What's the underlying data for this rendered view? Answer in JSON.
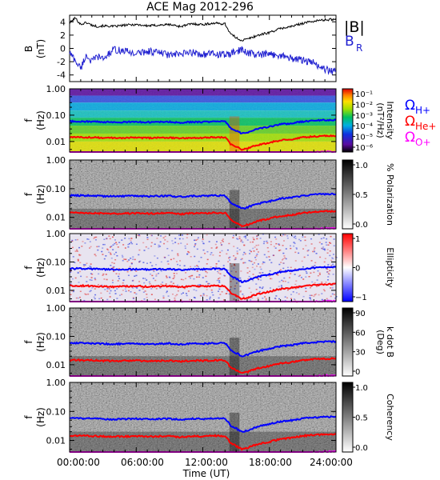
{
  "title": "ACE Mag 2012-296",
  "x_axis": {
    "label": "Time (UT)",
    "ticks": [
      "00:00:00",
      "06:00:00",
      "12:00:00",
      "18:00:00",
      "24:00:00"
    ]
  },
  "colors": {
    "B_total": "#000000",
    "B_R": "#1f1fd0",
    "H_plus": "#0000ff",
    "He_plus": "#ff0000",
    "O_plus": "#ff00ff"
  },
  "panels": [
    {
      "id": "field",
      "ylabel": [
        "B",
        "(nT)"
      ],
      "yticks": [
        "4",
        "2",
        "0",
        "-2",
        "-4"
      ],
      "legend": {
        "total": "|B|",
        "radial_main": "B",
        "radial_sub": "R"
      }
    },
    {
      "id": "intensity",
      "ylabel": [
        "f",
        "(Hz)"
      ],
      "yticks": [
        "1.00",
        "0.10",
        "0.01"
      ],
      "colorbar_label": [
        "Intensity",
        "(nT²/Hz)"
      ],
      "colorbar_ticks": [
        "10⁻¹",
        "10⁻²",
        "10⁻³",
        "10⁻⁴",
        "10⁻⁵",
        "10⁻⁶"
      ],
      "gyro_legend": [
        {
          "main": "Ω",
          "sub": "H+",
          "color": "#0000ff"
        },
        {
          "main": "Ω",
          "sub": "He+",
          "color": "#ff0000"
        },
        {
          "main": "Ω",
          "sub": "O+",
          "color": "#ff00ff"
        }
      ]
    },
    {
      "id": "polarization",
      "ylabel": [
        "f",
        "(Hz)"
      ],
      "yticks": [
        "1.00",
        "0.10",
        "0.01"
      ],
      "colorbar_label": [
        "% Polarization"
      ],
      "colorbar_ticks": [
        "1.0",
        "0.5",
        "0.0"
      ]
    },
    {
      "id": "ellipticity",
      "ylabel": [
        "f",
        "(Hz)"
      ],
      "yticks": [
        "1.00",
        "0.10",
        "0.01"
      ],
      "colorbar_label": [
        "Ellipticity"
      ],
      "colorbar_ticks": [
        "1",
        "0",
        "−1"
      ]
    },
    {
      "id": "kdotb",
      "ylabel": [
        "f",
        "(Hz)"
      ],
      "yticks": [
        "1.00",
        "0.10",
        "0.01"
      ],
      "colorbar_label": [
        "k dot B",
        "(Deg)"
      ],
      "colorbar_ticks": [
        "90",
        "60",
        "30",
        "0"
      ]
    },
    {
      "id": "coherency",
      "ylabel": [
        "f",
        "(Hz)"
      ],
      "yticks": [
        "1.00",
        "0.10",
        "0.01"
      ],
      "colorbar_label": [
        "Coherency"
      ],
      "colorbar_ticks": [
        "1.0",
        "0.5",
        "0.0"
      ]
    }
  ],
  "chart_data": {
    "type": "line",
    "title": "ACE Mag 2012-296",
    "xlabel": "Time (UT)",
    "x_range_hours": [
      0,
      24
    ],
    "field_panel": {
      "ylabel": "B (nT)",
      "ylim": [
        -5,
        5
      ],
      "series": [
        {
          "name": "|B|",
          "hours": [
            0,
            0.5,
            1,
            1.5,
            2,
            2.5,
            3,
            4,
            5,
            6,
            7,
            8,
            9,
            10,
            11,
            12,
            13,
            14,
            14.5,
            15,
            15.5,
            16,
            17,
            18,
            19,
            20,
            21,
            22,
            23,
            24
          ],
          "values": [
            3.8,
            4.6,
            3.6,
            3.9,
            3.5,
            3.3,
            3.4,
            3.3,
            3.5,
            3.6,
            3.4,
            3.5,
            3.6,
            3.3,
            3.7,
            3.6,
            3.8,
            3.7,
            2.2,
            1.6,
            1.2,
            1.4,
            2.0,
            2.4,
            3.0,
            3.3,
            3.8,
            4.1,
            4.3,
            4.4
          ]
        },
        {
          "name": "B_R",
          "hours": [
            0,
            0.5,
            1,
            1.5,
            2,
            2.5,
            3,
            4,
            5,
            6,
            7,
            8,
            9,
            10,
            11,
            12,
            13,
            14,
            14.5,
            15,
            15.5,
            16,
            17,
            18,
            19,
            20,
            21,
            22,
            23,
            24
          ],
          "values": [
            -0.6,
            -1.8,
            -3.0,
            -1.0,
            -2.0,
            -1.2,
            -1.6,
            -0.2,
            -0.4,
            -0.8,
            -0.4,
            -0.6,
            -1.0,
            -0.9,
            -0.6,
            -0.9,
            -0.8,
            -1.0,
            -0.8,
            -0.5,
            -0.2,
            -0.6,
            -1.0,
            -0.9,
            -1.0,
            -1.5,
            -1.8,
            -2.2,
            -3.2,
            -3.5
          ]
        }
      ]
    },
    "frequency_axis": {
      "scale": "log",
      "ylim_hz": [
        0.004,
        1.0
      ],
      "ticks": [
        1.0,
        0.1,
        0.01
      ]
    },
    "gyrofrequency_lines": {
      "hours": [
        0,
        1,
        2,
        3,
        4,
        5,
        6,
        7,
        8,
        9,
        10,
        11,
        12,
        13,
        14,
        14.5,
        15,
        15.5,
        16,
        17,
        18,
        19,
        20,
        21,
        22,
        23,
        24
      ],
      "H+": [
        0.058,
        0.058,
        0.057,
        0.055,
        0.054,
        0.055,
        0.056,
        0.054,
        0.055,
        0.056,
        0.052,
        0.056,
        0.055,
        0.058,
        0.057,
        0.032,
        0.026,
        0.02,
        0.022,
        0.03,
        0.036,
        0.045,
        0.049,
        0.057,
        0.062,
        0.065,
        0.066
      ],
      "He+": [
        0.0145,
        0.0145,
        0.0143,
        0.0138,
        0.0136,
        0.0138,
        0.014,
        0.0136,
        0.0138,
        0.014,
        0.013,
        0.014,
        0.0138,
        0.0145,
        0.0143,
        0.008,
        0.0065,
        0.005,
        0.0055,
        0.0075,
        0.009,
        0.0112,
        0.0122,
        0.0143,
        0.0155,
        0.0162,
        0.0165
      ],
      "O+": [
        0.0036,
        0.0036,
        0.0036,
        0.0035,
        0.0034,
        0.0035,
        0.0035,
        0.0034,
        0.0035,
        0.0035,
        0.0033,
        0.0035,
        0.0034,
        0.0036,
        0.0036,
        0.0021,
        0.0017,
        0.0013,
        0.0014,
        0.0019,
        0.0022,
        0.0028,
        0.0031,
        0.0036,
        0.0039,
        0.0041,
        0.0041
      ]
    },
    "spectrogram_panels": [
      {
        "quantity": "Intensity",
        "units": "nT^2/Hz",
        "scale": "log",
        "range": [
          1e-06,
          0.1
        ]
      },
      {
        "quantity": "% Polarization",
        "range": [
          0.0,
          1.0
        ]
      },
      {
        "quantity": "Ellipticity",
        "range": [
          -1,
          1
        ]
      },
      {
        "quantity": "k dot B",
        "units": "Deg",
        "range": [
          0,
          90
        ]
      },
      {
        "quantity": "Coherency",
        "range": [
          0.0,
          1.0
        ]
      }
    ]
  }
}
